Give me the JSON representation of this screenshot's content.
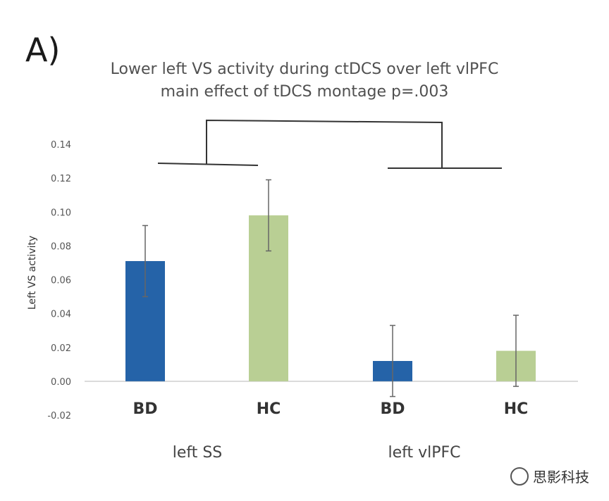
{
  "panel_label": "A)",
  "watermark": {
    "text": "思影科技",
    "icon": "wechat-icon"
  },
  "chart_data": {
    "type": "bar",
    "title": "Lower left VS activity during ctDCS over left vlPFC",
    "subtitle": "main effect of tDCS montage p=.003",
    "ylabel": "Left VS activity",
    "xlabel": "",
    "ylim": [
      -0.02,
      0.14
    ],
    "yticks": [
      "-0.02",
      "0.00",
      "0.02",
      "0.04",
      "0.06",
      "0.08",
      "0.10",
      "0.12",
      "0.14"
    ],
    "grid": false,
    "groups": [
      "left SS",
      "left vlPFC"
    ],
    "categories": [
      "BD",
      "HC",
      "BD",
      "HC"
    ],
    "values": [
      0.071,
      0.098,
      0.012,
      0.018
    ],
    "error": [
      0.021,
      0.021,
      0.021,
      0.021
    ],
    "colors": [
      "#2563a8",
      "#b9cf94",
      "#2563a8",
      "#b9cf94"
    ]
  }
}
